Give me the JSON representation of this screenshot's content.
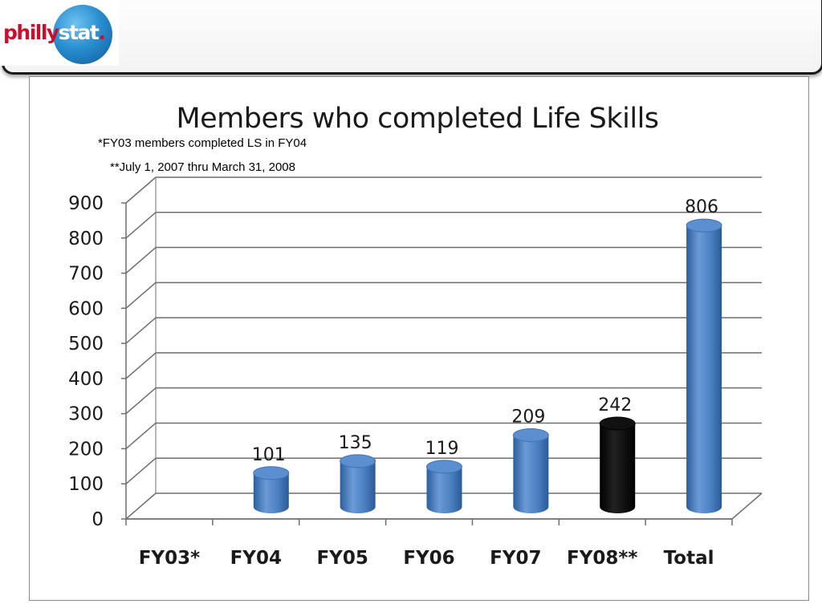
{
  "logo": {
    "philly": "philly",
    "stat": "stat",
    "dot": "."
  },
  "notes": {
    "fy03": "*FY03 members completed LS in FY04",
    "fy08": "**July 1, 2007 thru March 31, 2008"
  },
  "colors": {
    "bar": "#4a7fc1",
    "highlight_bar": "#000000",
    "grid": "#6e6e6e"
  },
  "chart_data": {
    "type": "bar",
    "title": "Members who completed Life Skills",
    "categories": [
      "FY03*",
      "FY04",
      "FY05",
      "FY06",
      "FY07",
      "FY08**",
      "Total"
    ],
    "values": [
      null,
      101,
      135,
      119,
      209,
      242,
      806
    ],
    "data_labels": [
      "",
      "101",
      "135",
      "119",
      "209",
      "242",
      "806"
    ],
    "highlight": [
      false,
      false,
      false,
      false,
      false,
      true,
      false
    ],
    "ylim": [
      0,
      900
    ],
    "yticks": [
      0,
      100,
      200,
      300,
      400,
      500,
      600,
      700,
      800,
      900
    ],
    "grid": true,
    "style": "3d-cylinder"
  }
}
